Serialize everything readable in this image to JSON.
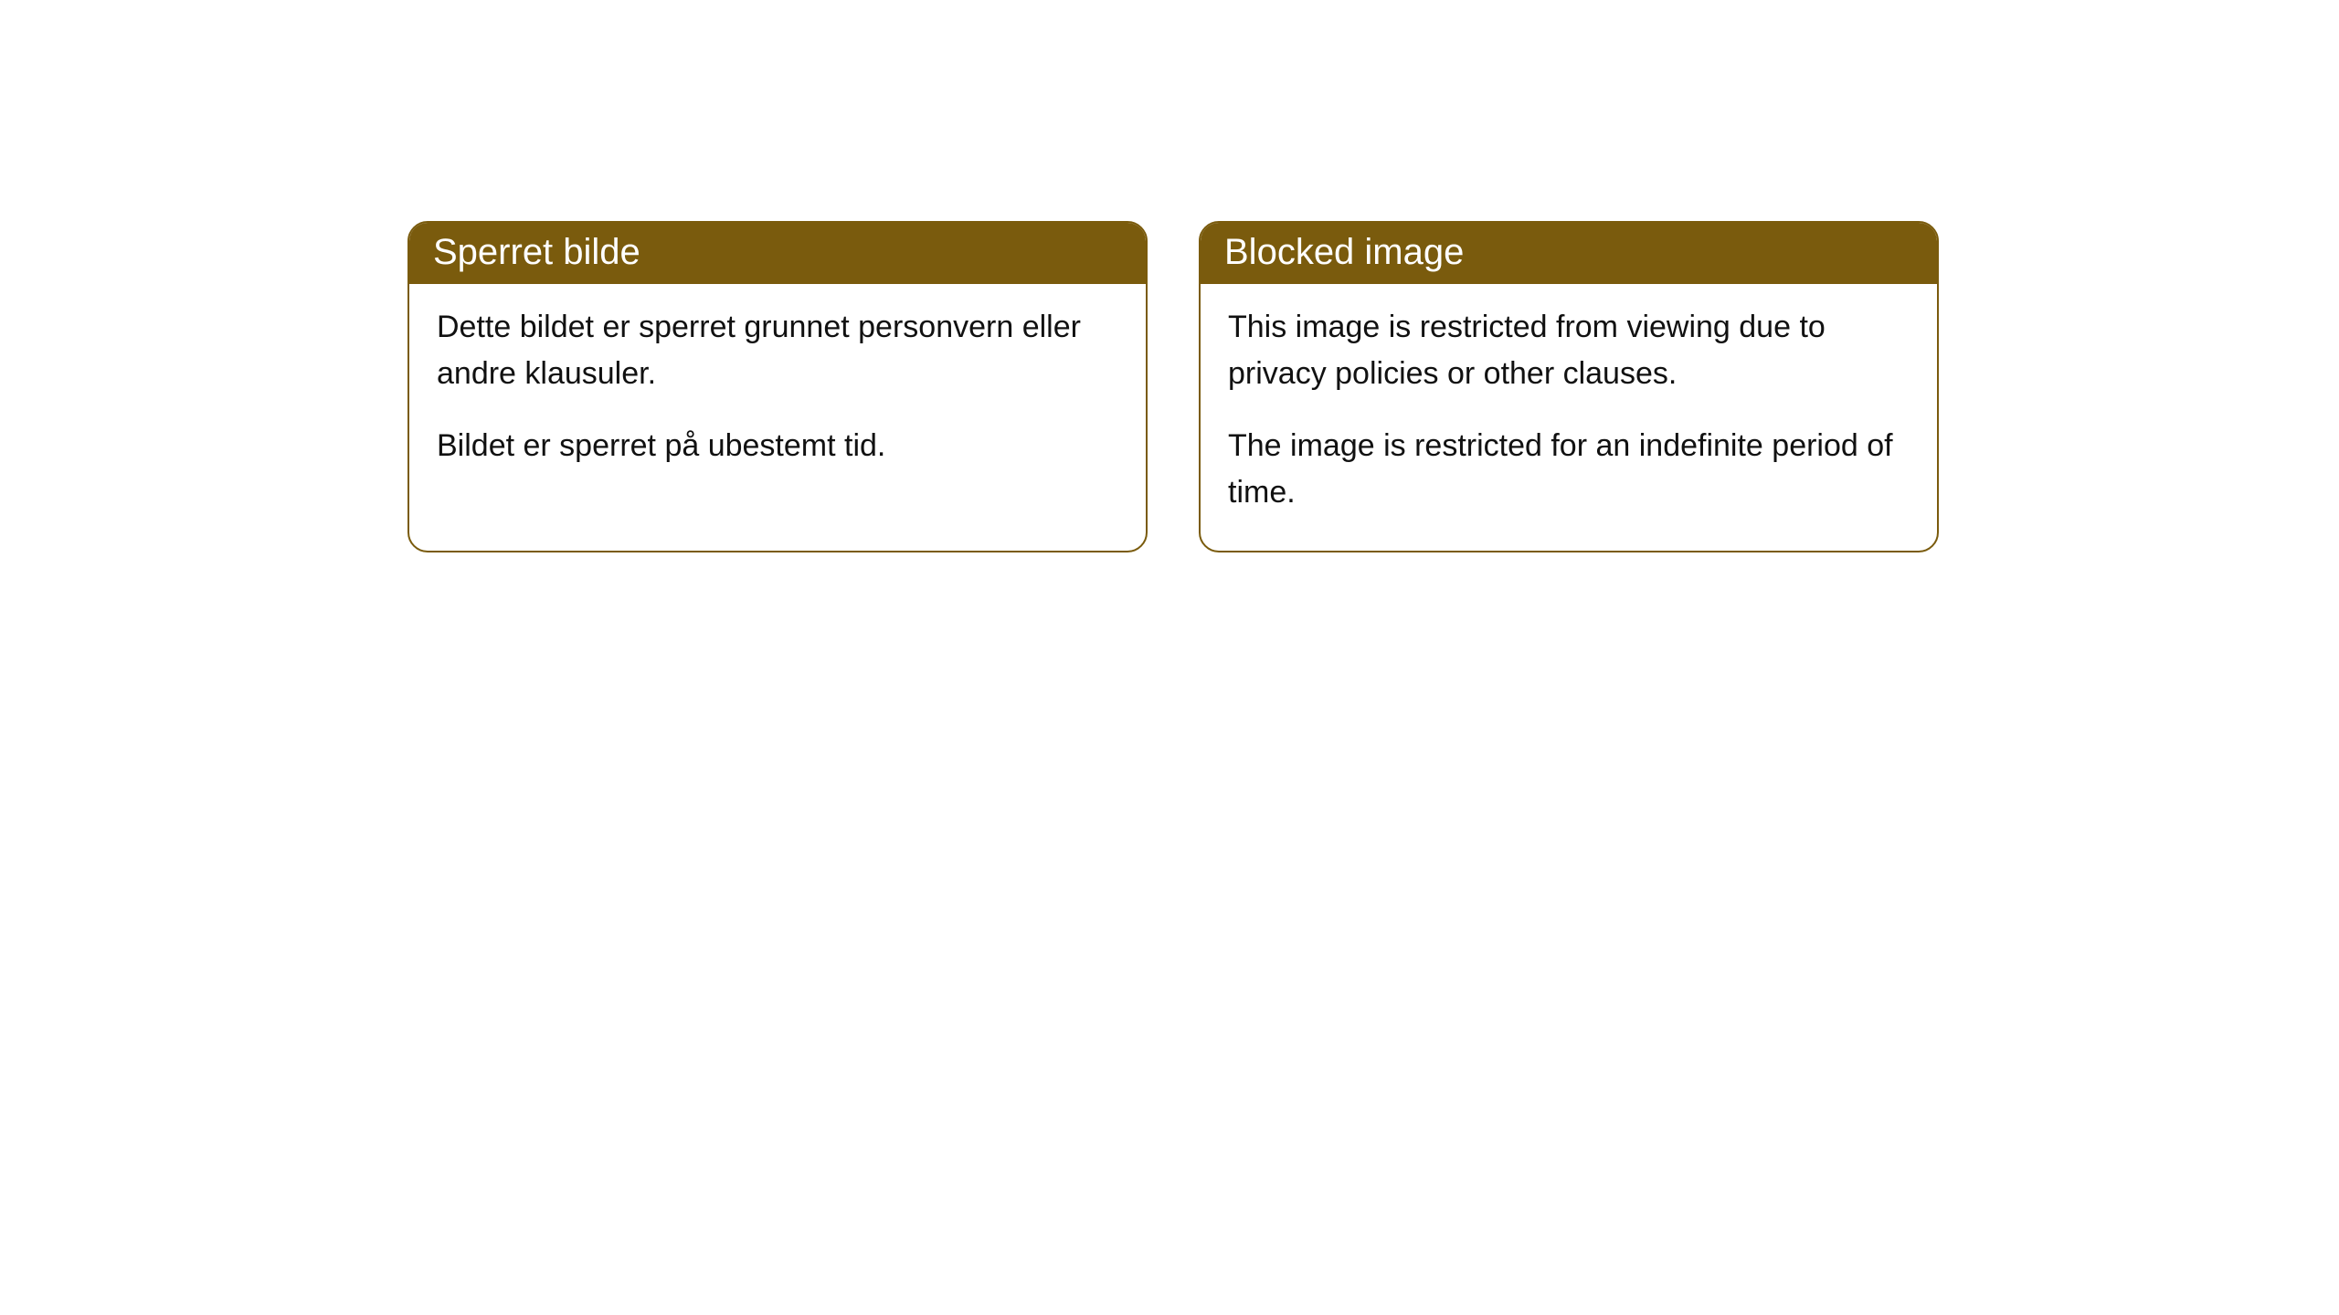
{
  "cards": [
    {
      "title": "Sperret bilde",
      "paragraph1": "Dette bildet er sperret grunnet personvern eller andre klausuler.",
      "paragraph2": "Bildet er sperret på ubestemt tid."
    },
    {
      "title": "Blocked image",
      "paragraph1": "This image is restricted from viewing due to privacy policies or other clauses.",
      "paragraph2": "The image is restricted for an indefinite period of time."
    }
  ],
  "style": {
    "header_background": "#7a5b0d",
    "header_text_color": "#ffffff",
    "card_border_color": "#7a5b0d",
    "card_background": "#ffffff",
    "body_text_color": "#111111",
    "page_background": "#ffffff",
    "border_radius": 22,
    "title_fontsize": 40,
    "body_fontsize": 34
  }
}
